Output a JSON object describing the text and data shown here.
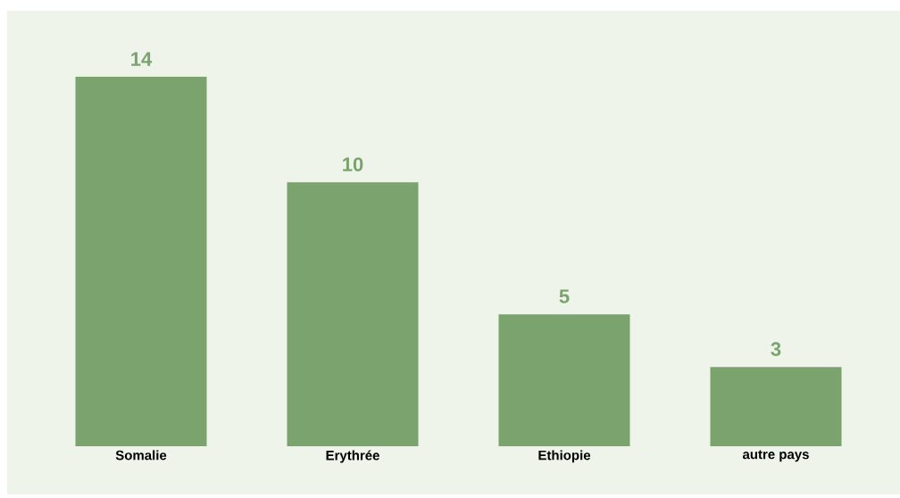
{
  "chart_data": {
    "type": "bar",
    "categories": [
      "Somalie",
      "Erythrée",
      "Ethiopie",
      "autre pays"
    ],
    "values": [
      14,
      10,
      5,
      3
    ],
    "color": "#7aa36d",
    "data_labels": true
  }
}
